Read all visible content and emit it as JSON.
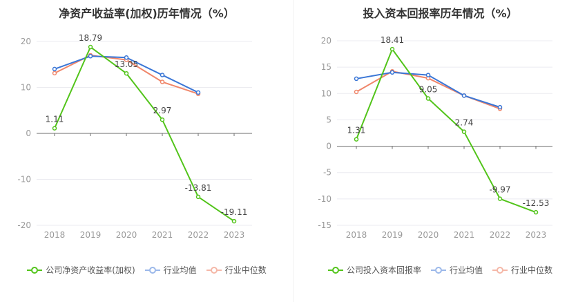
{
  "colors": {
    "company": "#52C41A",
    "avg": "#3A76D6",
    "median": "#F0866A",
    "grid": "#ebebf0",
    "axis": "#999999"
  },
  "chart_data": [
    {
      "type": "line",
      "title": "净资产收益率(加权)历年情况（%）",
      "categories": [
        "2018",
        "2019",
        "2020",
        "2021",
        "2022",
        "2023"
      ],
      "ylim": [
        -20,
        20
      ],
      "yticks": [
        20,
        10,
        0,
        -10,
        -20
      ],
      "legend_position": "bottom",
      "series": [
        {
          "name": "公司净资产收益率(加权)",
          "values": [
            1.11,
            18.79,
            13.05,
            2.97,
            -13.81,
            -19.11
          ],
          "labels": [
            "1.11",
            "18.79",
            "13.05",
            "2.97",
            "-13.81",
            "-19.11"
          ]
        },
        {
          "name": "行业均值",
          "values": [
            14.0,
            16.8,
            16.5,
            12.7,
            8.9,
            null
          ]
        },
        {
          "name": "行业中位数",
          "values": [
            13.1,
            17.0,
            16.0,
            11.2,
            8.6,
            null
          ]
        }
      ]
    },
    {
      "type": "line",
      "title": "投入资本回报率历年情况（%）",
      "categories": [
        "2018",
        "2019",
        "2020",
        "2021",
        "2022",
        "2023"
      ],
      "ylim": [
        -15,
        20
      ],
      "yticks": [
        20,
        15,
        10,
        5,
        0,
        -5,
        -10,
        -15
      ],
      "legend_position": "bottom",
      "series": [
        {
          "name": "公司投入资本回报率",
          "values": [
            1.31,
            18.41,
            9.05,
            2.74,
            -9.97,
            -12.53
          ],
          "labels": [
            "1.31",
            "18.41",
            "9.05",
            "2.74",
            "-9.97",
            "-12.53"
          ]
        },
        {
          "name": "行业均值",
          "values": [
            12.8,
            14.0,
            13.5,
            9.6,
            7.4,
            null
          ]
        },
        {
          "name": "行业中位数",
          "values": [
            10.3,
            14.2,
            12.9,
            9.6,
            7.1,
            null
          ]
        }
      ]
    }
  ]
}
